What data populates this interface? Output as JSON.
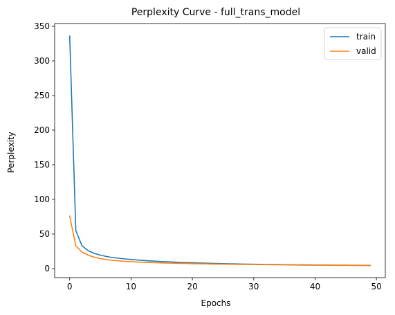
{
  "chart_data": {
    "type": "line",
    "title": "Perplexity Curve - full_trans_model",
    "xlabel": "Epochs",
    "ylabel": "Perplexity",
    "xlim": [
      -2.45,
      51.45
    ],
    "ylim": [
      -13,
      354
    ],
    "xticks": [
      0,
      10,
      20,
      30,
      40,
      50
    ],
    "yticks": [
      0,
      50,
      100,
      150,
      200,
      250,
      300,
      350
    ],
    "grid": false,
    "legend_position": "top-right",
    "x": [
      0,
      1,
      2,
      3,
      4,
      5,
      6,
      7,
      8,
      9,
      10,
      11,
      12,
      13,
      14,
      15,
      16,
      17,
      18,
      19,
      20,
      21,
      22,
      23,
      24,
      25,
      26,
      27,
      28,
      29,
      30,
      31,
      32,
      33,
      34,
      35,
      36,
      37,
      38,
      39,
      40,
      41,
      42,
      43,
      44,
      45,
      46,
      47,
      48,
      49
    ],
    "series": [
      {
        "name": "train",
        "color": "#1f77b4",
        "values": [
          336,
          55,
          33,
          26,
          22,
          19.5,
          17.5,
          16,
          15,
          14,
          13.2,
          12.5,
          11.8,
          11.2,
          10.7,
          10.2,
          9.8,
          9.4,
          9.0,
          8.7,
          8.4,
          8.1,
          7.9,
          7.6,
          7.4,
          7.2,
          7.0,
          6.8,
          6.6,
          6.5,
          6.3,
          6.2,
          6.0,
          5.9,
          5.8,
          5.7,
          5.6,
          5.5,
          5.4,
          5.3,
          5.2,
          5.1,
          5.05,
          5.0,
          4.95,
          4.9,
          4.85,
          4.8,
          4.75,
          4.7
        ]
      },
      {
        "name": "valid",
        "color": "#ff7f0e",
        "values": [
          76,
          33,
          24,
          19.5,
          16.5,
          14.5,
          13,
          12,
          11.2,
          10.5,
          10,
          9.6,
          9.2,
          8.8,
          8.5,
          8.2,
          8.0,
          7.8,
          7.6,
          7.4,
          7.2,
          7.0,
          6.9,
          6.7,
          6.6,
          6.5,
          6.3,
          6.2,
          6.1,
          6.0,
          5.9,
          5.8,
          5.7,
          5.6,
          5.5,
          5.4,
          5.3,
          5.2,
          5.1,
          5.0,
          4.95,
          4.9,
          4.8,
          4.75,
          4.7,
          4.65,
          4.6,
          4.55,
          4.5,
          4.45
        ]
      }
    ]
  }
}
